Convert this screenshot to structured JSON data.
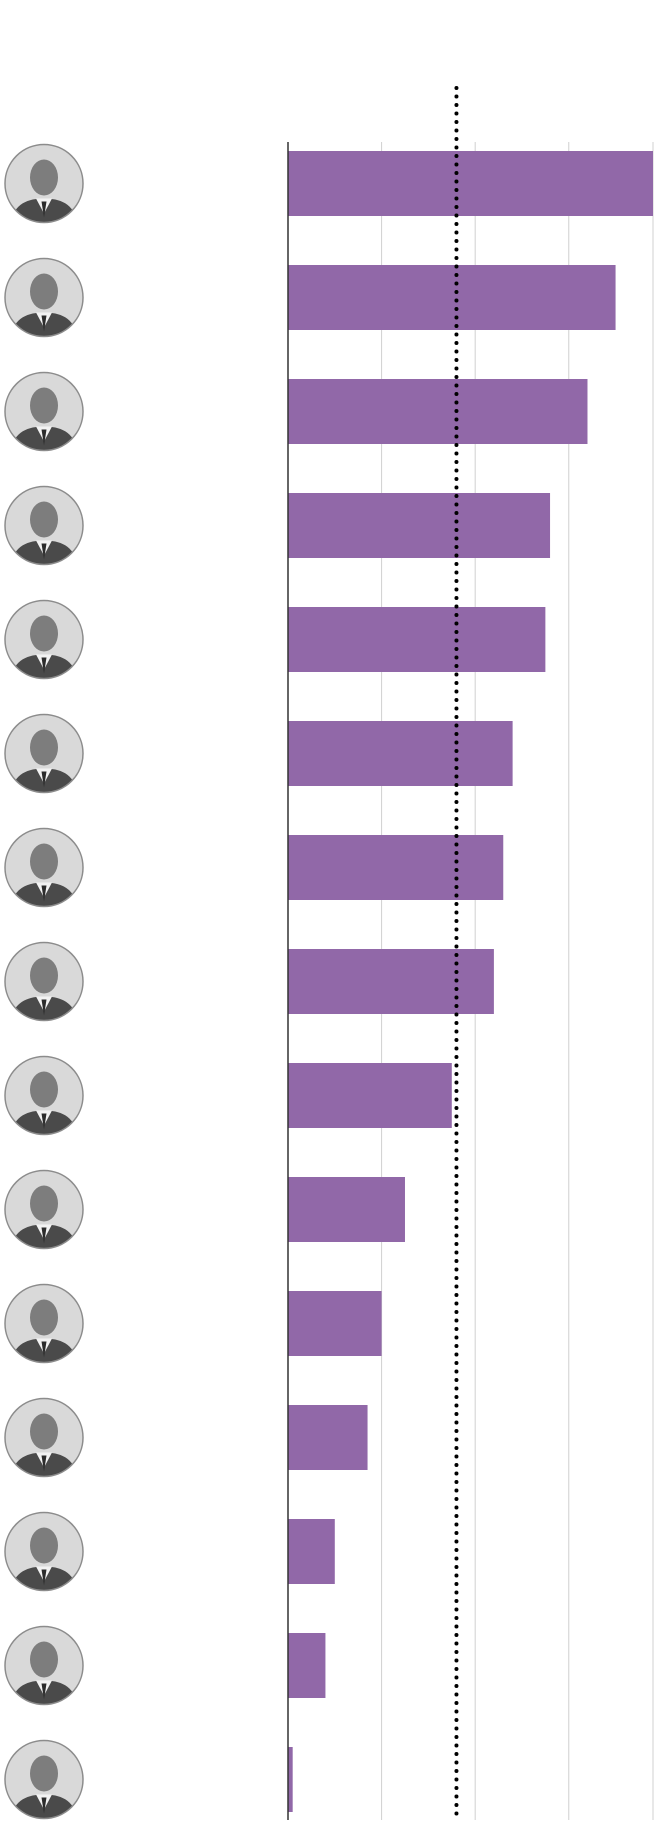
{
  "chart_data": {
    "type": "bar",
    "orientation": "horizontal",
    "categories": [
      "",
      "",
      "",
      "",
      "",
      "",
      "",
      "",
      "",
      "",
      "",
      "",
      "",
      "",
      ""
    ],
    "values": [
      39,
      35,
      32,
      28,
      27.5,
      24,
      23,
      22,
      17.5,
      12.5,
      10,
      8.5,
      5,
      4,
      0.5
    ],
    "xlim": [
      0,
      39
    ],
    "gridlines": [
      10,
      20,
      30,
      39
    ],
    "reference_line": 18,
    "grid": true,
    "legend": "none"
  },
  "colors": {
    "bar": "#9168a8",
    "gridline": "#d0d0d0",
    "axis": "#333333",
    "reference_line": "#000000"
  },
  "avatar_icon": "person-portrait-icon"
}
